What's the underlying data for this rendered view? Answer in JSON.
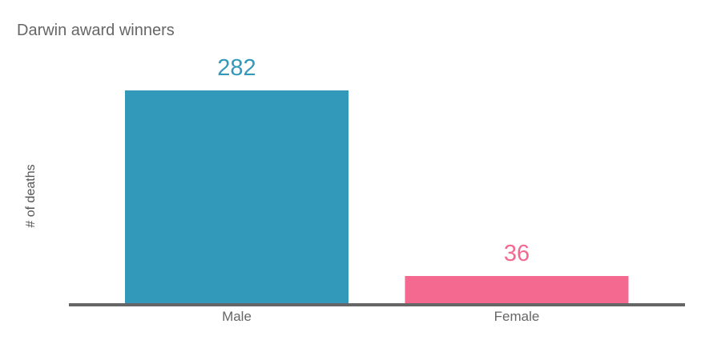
{
  "chart_data": {
    "type": "bar",
    "title": "Darwin award winners",
    "xlabel": "",
    "ylabel": "# of deaths",
    "categories": [
      "Male",
      "Female"
    ],
    "values": [
      282,
      36
    ],
    "data_labels": [
      "282",
      "36"
    ],
    "colors": [
      "#3399bb",
      "#f46990"
    ],
    "ylim": [
      0,
      282
    ],
    "grid": false,
    "legend": "none"
  },
  "style": {
    "title_color": "#666666",
    "axis_color": "#666666"
  }
}
